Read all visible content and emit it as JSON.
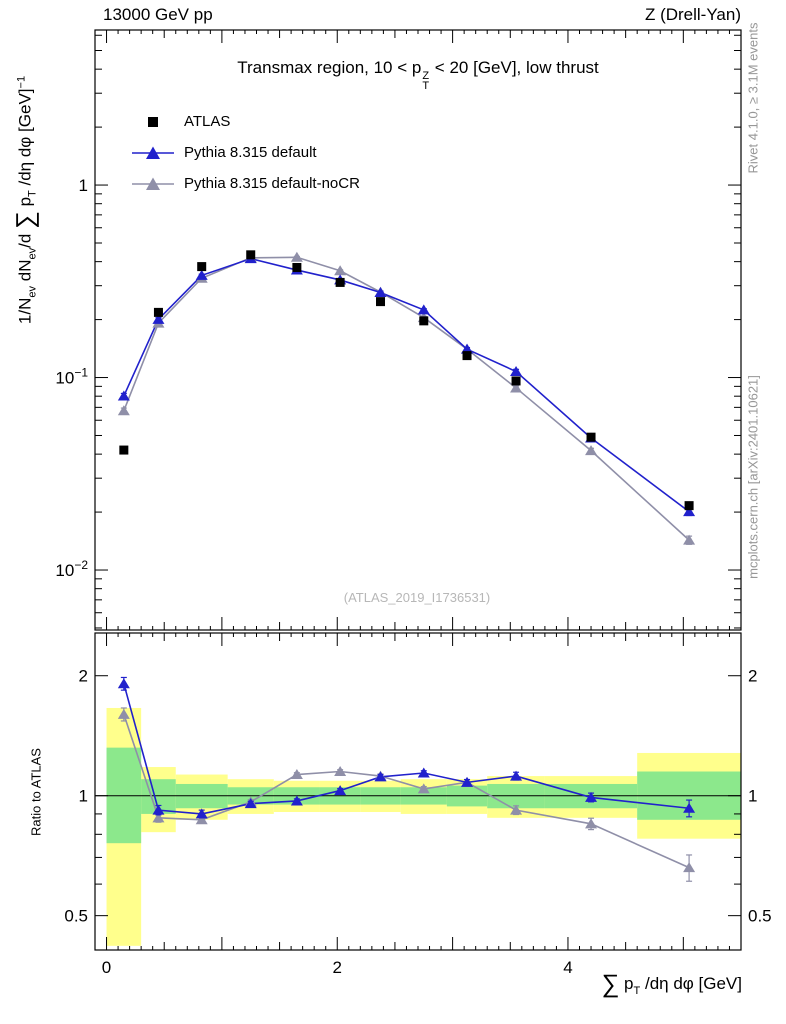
{
  "labels": {
    "header_left": "13000 GeV pp",
    "header_right": "Z (Drell-Yan)",
    "title": {
      "a": "Transmax region, 10 < p",
      "sup": "Z",
      "sub": "T",
      "b": " < 20 [GeV], low thrust"
    },
    "watermark": "(ATLAS_2019_I1736531)",
    "rivet_note": "Rivet 4.1.0, ≥ 3.1M events",
    "mcplots_note": "mcplots.cern.ch [arXiv:2401.10621]",
    "ratio_axis": "Ratio to ATLAS",
    "y_axis": {
      "n1": "1/N",
      "n1s": "ev",
      "n2": " dN",
      "n2s": "ev",
      "n3": "/d ",
      "sum": "∑",
      "n4": " p",
      "n4s": "T",
      "n5": " /dη dφ  [GeV]",
      "exp": "−1"
    },
    "x_axis": {
      "sum": "∑",
      "a": " p",
      "as": "T",
      "b": " /dη dφ [GeV]"
    }
  },
  "legend": [
    {
      "label": "ATLAS",
      "marker": "square",
      "color": "#000000",
      "line": false
    },
    {
      "label": "Pythia 8.315 default",
      "marker": "triangle",
      "color": "#2121cc",
      "line": true
    },
    {
      "label": "Pythia 8.315 default-noCR",
      "marker": "triangle",
      "color": "#8f8fa8",
      "line": true
    }
  ],
  "chart_data": {
    "type": "line",
    "title": "Transmax region, 10 < pT(Z) < 20 [GeV], low thrust",
    "xlabel": "∑ pT /dη dφ [GeV]",
    "ylabel": "1/N_ev dN_ev/d∑ pT /dη dφ [GeV]^-1",
    "ratio_ylabel": "Ratio to ATLAS",
    "x": [
      0.15,
      0.45,
      0.825,
      1.25,
      1.65,
      2.025,
      2.375,
      2.75,
      3.125,
      3.55,
      4.2,
      5.05
    ],
    "bin_edges": [
      0,
      0.3,
      0.6,
      1.05,
      1.45,
      1.85,
      2.2,
      2.55,
      2.95,
      3.3,
      3.8,
      4.6,
      5.5
    ],
    "series": [
      {
        "name": "ATLAS",
        "color": "#000000",
        "marker": "square",
        "line": false,
        "values": [
          0.042,
          0.218,
          0.377,
          0.434,
          0.373,
          0.312,
          0.248,
          0.197,
          0.13,
          0.096,
          0.049,
          0.0216
        ],
        "errors": [
          0.0015,
          0.004,
          0.006,
          0.006,
          0.005,
          0.004,
          0.004,
          0.0035,
          0.003,
          0.0025,
          0.0013,
          0.0008
        ]
      },
      {
        "name": "Pythia 8.315 default",
        "color": "#2121cc",
        "marker": "triangle",
        "line": true,
        "values": [
          0.0802,
          0.2006,
          0.3393,
          0.4145,
          0.3618,
          0.3214,
          0.2765,
          0.2246,
          0.1404,
          0.1075,
          0.0485,
          0.0201
        ],
        "errors": [
          0.0025,
          0.004,
          0.005,
          0.005,
          0.004,
          0.004,
          0.004,
          0.0035,
          0.0028,
          0.0028,
          0.0013,
          0.0009
        ]
      },
      {
        "name": "Pythia 8.315 default-noCR",
        "color": "#8f8fa8",
        "marker": "triangle",
        "line": true,
        "values": [
          0.0672,
          0.1918,
          0.328,
          0.4188,
          0.4215,
          0.3588,
          0.2778,
          0.2049,
          0.1404,
          0.0883,
          0.0417,
          0.0143
        ],
        "errors": [
          0.0022,
          0.004,
          0.005,
          0.005,
          0.004,
          0.004,
          0.004,
          0.003,
          0.0026,
          0.0022,
          0.0012,
          0.0007
        ]
      }
    ],
    "ratio": {
      "series": [
        {
          "name": "Pythia 8.315 default",
          "color": "#2121cc",
          "marker": "triangle",
          "values": [
            1.91,
            0.92,
            0.9,
            0.955,
            0.97,
            1.03,
            1.115,
            1.14,
            1.08,
            1.12,
            0.99,
            0.93
          ],
          "errors": [
            0.07,
            0.025,
            0.02,
            0.013,
            0.012,
            0.012,
            0.015,
            0.015,
            0.018,
            0.025,
            0.025,
            0.045
          ]
        },
        {
          "name": "Pythia 8.315 default-noCR",
          "color": "#8f8fa8",
          "marker": "triangle",
          "values": [
            1.6,
            0.88,
            0.87,
            0.965,
            1.13,
            1.15,
            1.12,
            1.04,
            1.08,
            0.92,
            0.85,
            0.66
          ],
          "errors": [
            0.06,
            0.022,
            0.018,
            0.012,
            0.012,
            0.012,
            0.014,
            0.014,
            0.017,
            0.023,
            0.028,
            0.05
          ]
        }
      ],
      "bands": {
        "green": [
          [
            0.76,
            1.32
          ],
          [
            0.9,
            1.1
          ],
          [
            0.93,
            1.07
          ],
          [
            0.95,
            1.05
          ],
          [
            0.95,
            1.05
          ],
          [
            0.95,
            1.05
          ],
          [
            0.95,
            1.05
          ],
          [
            0.95,
            1.05
          ],
          [
            0.94,
            1.06
          ],
          [
            0.93,
            1.07
          ],
          [
            0.93,
            1.07
          ],
          [
            0.87,
            1.15
          ]
        ],
        "yellow": [
          [
            0.42,
            1.66
          ],
          [
            0.81,
            1.18
          ],
          [
            0.87,
            1.13
          ],
          [
            0.9,
            1.1
          ],
          [
            0.91,
            1.09
          ],
          [
            0.91,
            1.09
          ],
          [
            0.91,
            1.09
          ],
          [
            0.9,
            1.1
          ],
          [
            0.9,
            1.1
          ],
          [
            0.88,
            1.12
          ],
          [
            0.88,
            1.12
          ],
          [
            0.78,
            1.28
          ]
        ]
      }
    },
    "band_colors": {
      "green": "#8ce88c",
      "yellow": "#ffff8c"
    },
    "axes": {
      "x": {
        "min": -0.1,
        "max": 5.5,
        "majors": [
          0,
          2,
          4
        ]
      },
      "y_main": {
        "log": true,
        "min": 0.00488,
        "max": 6.39,
        "major_exps": [
          0,
          -1,
          -2
        ]
      },
      "y_ratio": {
        "log": true,
        "min": 0.41,
        "max": 2.56,
        "majors": [
          2,
          1,
          0.5
        ],
        "minors": [
          0.6,
          0.7,
          0.8,
          0.9
        ]
      }
    }
  }
}
